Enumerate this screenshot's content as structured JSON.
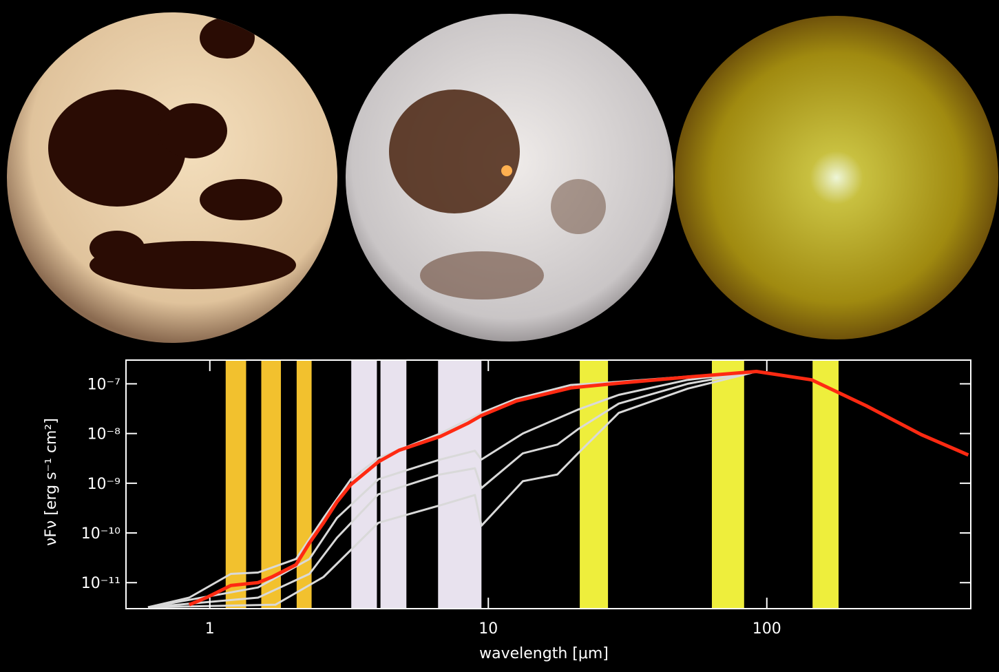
{
  "chart_data": {
    "type": "line",
    "xlabel": "wavelength [μm]",
    "ylabel": "νFν [erg s⁻¹ cm²]",
    "log_x": true,
    "log_y": true,
    "xlim": [
      0.5,
      540
    ],
    "ylim": [
      3e-12,
      3e-07
    ],
    "xticks": [
      1,
      10,
      100
    ],
    "yticks": [
      {
        "value": 1e-07,
        "label": "10⁻⁷"
      },
      {
        "value": 1e-08,
        "label": "10⁻⁸"
      },
      {
        "value": 1e-09,
        "label": "10⁻⁹"
      },
      {
        "value": 1e-10,
        "label": "10⁻¹⁰"
      },
      {
        "value": 1e-11,
        "label": "10⁻¹¹"
      }
    ],
    "bands": [
      {
        "range": [
          1.14,
          1.35
        ],
        "color": "#f2c12e"
      },
      {
        "range": [
          1.53,
          1.8
        ],
        "color": "#f2c12e"
      },
      {
        "range": [
          2.05,
          2.32
        ],
        "color": "#f2c12e"
      },
      {
        "range": [
          3.22,
          3.98
        ],
        "color": "#e8e2ee"
      },
      {
        "range": [
          4.1,
          5.08
        ],
        "color": "#e8e2ee"
      },
      {
        "range": [
          6.6,
          9.45
        ],
        "color": "#e8e2ee"
      },
      {
        "range": [
          21.3,
          26.9
        ],
        "color": "#eeee3c"
      },
      {
        "range": [
          63.5,
          82.9
        ],
        "color": "#eeee3c"
      },
      {
        "range": [
          146,
          181
        ],
        "color": "#eeee3c"
      }
    ],
    "series": [
      {
        "color": "#d9d9d9",
        "x": [
          0.6,
          1.72,
          2.56,
          4.03,
          6.72,
          8.95,
          9.45,
          13.3,
          17.7,
          20.9,
          29.4,
          52,
          82,
          91.8
        ],
        "values": [
          3.2e-12,
          3.6e-12,
          1.3e-11,
          1.6e-10,
          3.6e-10,
          5.8e-10,
          1.4e-10,
          1.1e-09,
          1.5e-09,
          3.9e-09,
          2.6e-08,
          8e-08,
          1.5e-07,
          1.77e-07
        ]
      },
      {
        "color": "#d9d9d9",
        "x": [
          0.6,
          1.49,
          2.28,
          2.86,
          4.03,
          6.72,
          8.95,
          9.45,
          13.3,
          17.7,
          20.9,
          29.4,
          52,
          91.8
        ],
        "values": [
          3.2e-12,
          5e-12,
          1.5e-11,
          8e-11,
          6e-10,
          1.5e-09,
          2e-09,
          8e-10,
          4e-09,
          6e-09,
          1.2e-08,
          4e-08,
          1e-07,
          1.77e-07
        ]
      },
      {
        "color": "#d9d9d9",
        "x": [
          0.6,
          1.49,
          2.28,
          2.86,
          4.03,
          6.72,
          8.95,
          9.45,
          13.3,
          20.9,
          29.4,
          52,
          91.8
        ],
        "values": [
          3.2e-12,
          8e-12,
          3e-11,
          2e-10,
          1.2e-09,
          3e-09,
          4.5e-09,
          3e-09,
          1e-08,
          3e-08,
          6e-08,
          1.2e-07,
          1.77e-07
        ]
      },
      {
        "color": "#d9d9d9",
        "x": [
          0.6,
          0.843,
          1.19,
          1.49,
          2.04,
          2.56,
          3.21,
          4.03,
          6.72,
          9.45,
          12.6,
          19.8,
          29.4,
          52,
          91.8
        ],
        "values": [
          3.2e-12,
          5e-12,
          1.5e-11,
          1.6e-11,
          3e-11,
          2e-10,
          1.2e-09,
          3.2e-09,
          1e-08,
          2.6e-08,
          5e-08,
          9.5e-08,
          1.1e-07,
          1.4e-07,
          1.77e-07
        ]
      },
      {
        "color": "#ff2a12",
        "x": [
          0.843,
          0.972,
          1.19,
          1.49,
          1.67,
          2.04,
          2.28,
          2.56,
          2.86,
          3.21,
          4.03,
          4.78,
          6.72,
          8.43,
          9.45,
          12.6,
          19.8,
          29.4,
          52,
          91.8,
          145,
          228,
          359,
          529
        ],
        "values": [
          3.6e-12,
          5e-12,
          8.8e-12,
          1e-11,
          1.3e-11,
          2.3e-11,
          6.3e-11,
          1.6e-10,
          4.2e-10,
          9.4e-10,
          2.7e-09,
          4.6e-09,
          8.7e-09,
          1.6e-08,
          2.3e-08,
          4.5e-08,
          8.3e-08,
          1.03e-07,
          1.37e-07,
          1.77e-07,
          1.2e-07,
          3.6e-08,
          9.5e-09,
          3.7e-09
        ]
      }
    ]
  }
}
